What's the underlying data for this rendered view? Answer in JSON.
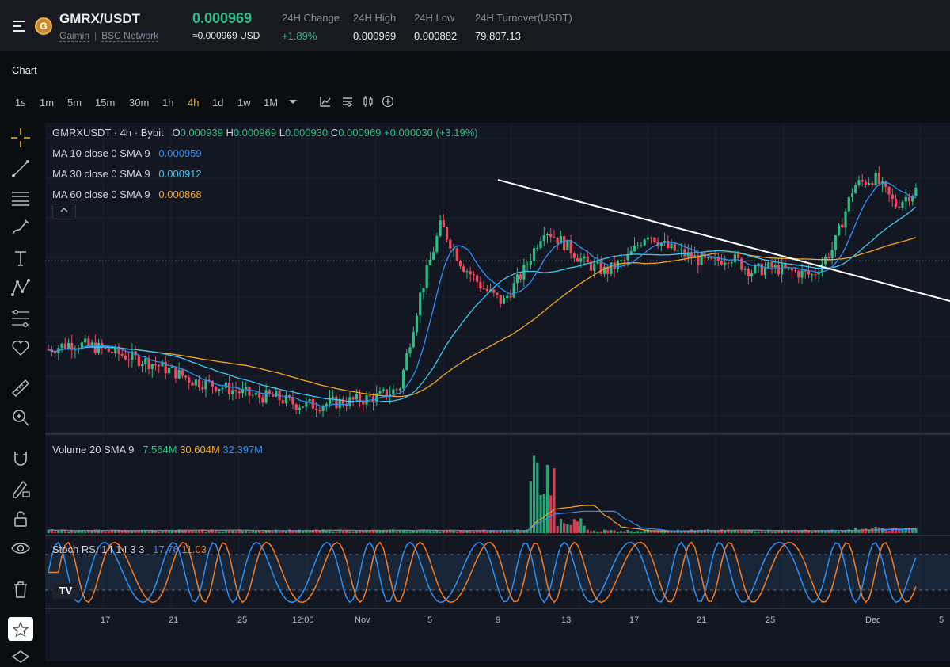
{
  "header": {
    "pair": "GMRX/USDT",
    "logo_letter": "G",
    "project": "Gaimin",
    "divider": "|",
    "network": "BSC Network",
    "last_price": "0.000969",
    "usd_price": "≈0.000969 USD",
    "stats": [
      {
        "label": "24H Change",
        "value": "+1.89%"
      },
      {
        "label": "24H High",
        "value": "0.000969"
      },
      {
        "label": "24H Low",
        "value": "0.000882"
      },
      {
        "label": "24H Turnover(USDT)",
        "value": "79,807.13"
      }
    ]
  },
  "chart_label": "Chart",
  "timeframes": [
    "1s",
    "1m",
    "5m",
    "15m",
    "30m",
    "1h",
    "4h",
    "1d",
    "1w",
    "1M"
  ],
  "active_timeframe": "4h",
  "toolbar_icons": [
    "chevron-down-icon",
    "indicator-icon",
    "settings-icon",
    "candle-type-icon",
    "add-icon"
  ],
  "side_tools": [
    "crosshair-icon",
    "trendline-icon",
    "fib-icon",
    "brush-icon",
    "text-icon",
    "pattern-icon",
    "prediction-icon",
    "favorite-icon",
    "ruler-icon",
    "zoom-icon",
    "magnet-icon",
    "lock-draw-icon",
    "lock-icon",
    "eye-icon",
    "trash-icon",
    "star-icon",
    "layers-icon"
  ],
  "legend": {
    "title": "GMRXUSDT · 4h · Bybit",
    "o_label": "O",
    "o_value": "0.000939",
    "h_label": "H",
    "h_value": "0.000969",
    "l_label": "L",
    "l_value": "0.000930",
    "c_label": "C",
    "c_value": "0.000969",
    "change": "+0.000030 (+3.19%)",
    "ma": [
      {
        "label": "MA 10 close 0 SMA 9",
        "value": "0.000959",
        "color": "#2f8ff5"
      },
      {
        "label": "MA 30 close 0 SMA 9",
        "value": "0.000912",
        "color": "#3ec9f3"
      },
      {
        "label": "MA 60 close 0 SMA 9",
        "value": "0.000868",
        "color": "#f5a623"
      }
    ],
    "collapse_icon": "chevron-up-icon"
  },
  "volume_legend": {
    "label": "Volume 20 SMA 9",
    "v1": "7.564M",
    "v1_color": "#2ebd85",
    "v2": "30.604M",
    "v2_color": "#f5a623",
    "v3": "32.397M",
    "v3_color": "#2f8ff5"
  },
  "rsi_legend": {
    "label": "Stoch RSI 14 14 3 3",
    "k": "17.76",
    "k_color": "#2f8ff5",
    "d": "11.03",
    "d_color": "#f57c23"
  },
  "x_axis": [
    "17",
    "21",
    "25",
    "12:00",
    "Nov",
    "5",
    "9",
    "13",
    "17",
    "21",
    "25",
    "Dec",
    "5"
  ],
  "tv_logo": "TV",
  "colors": {
    "up": "#2ebd85",
    "down": "#f6465d",
    "accent": "#f0b90b",
    "trendline": "#ffffff"
  },
  "chart_data": {
    "type": "line",
    "series": [
      {
        "name": "GMRXUSDT",
        "values": [
          0.00056,
          0.000575,
          0.00057,
          0.000555,
          0.00054,
          0.000525,
          0.000505,
          0.00048,
          0.00047,
          0.000455,
          0.00044,
          0.000438,
          0.00042,
          0.000418,
          0.000425,
          0.00043,
          0.00044,
          0.00046,
          0.0007,
          0.00088,
          0.00078,
          0.00072,
          0.00068,
          0.00076,
          0.00087,
          0.00083,
          0.00078,
          0.00076,
          0.00079,
          0.00086,
          0.00082,
          0.0008,
          0.00078,
          0.0008,
          0.00076,
          0.00077,
          0.00076,
          0.00075,
          0.00082,
          0.00098,
          0.001,
          0.00093,
          0.000969
        ]
      }
    ]
  }
}
